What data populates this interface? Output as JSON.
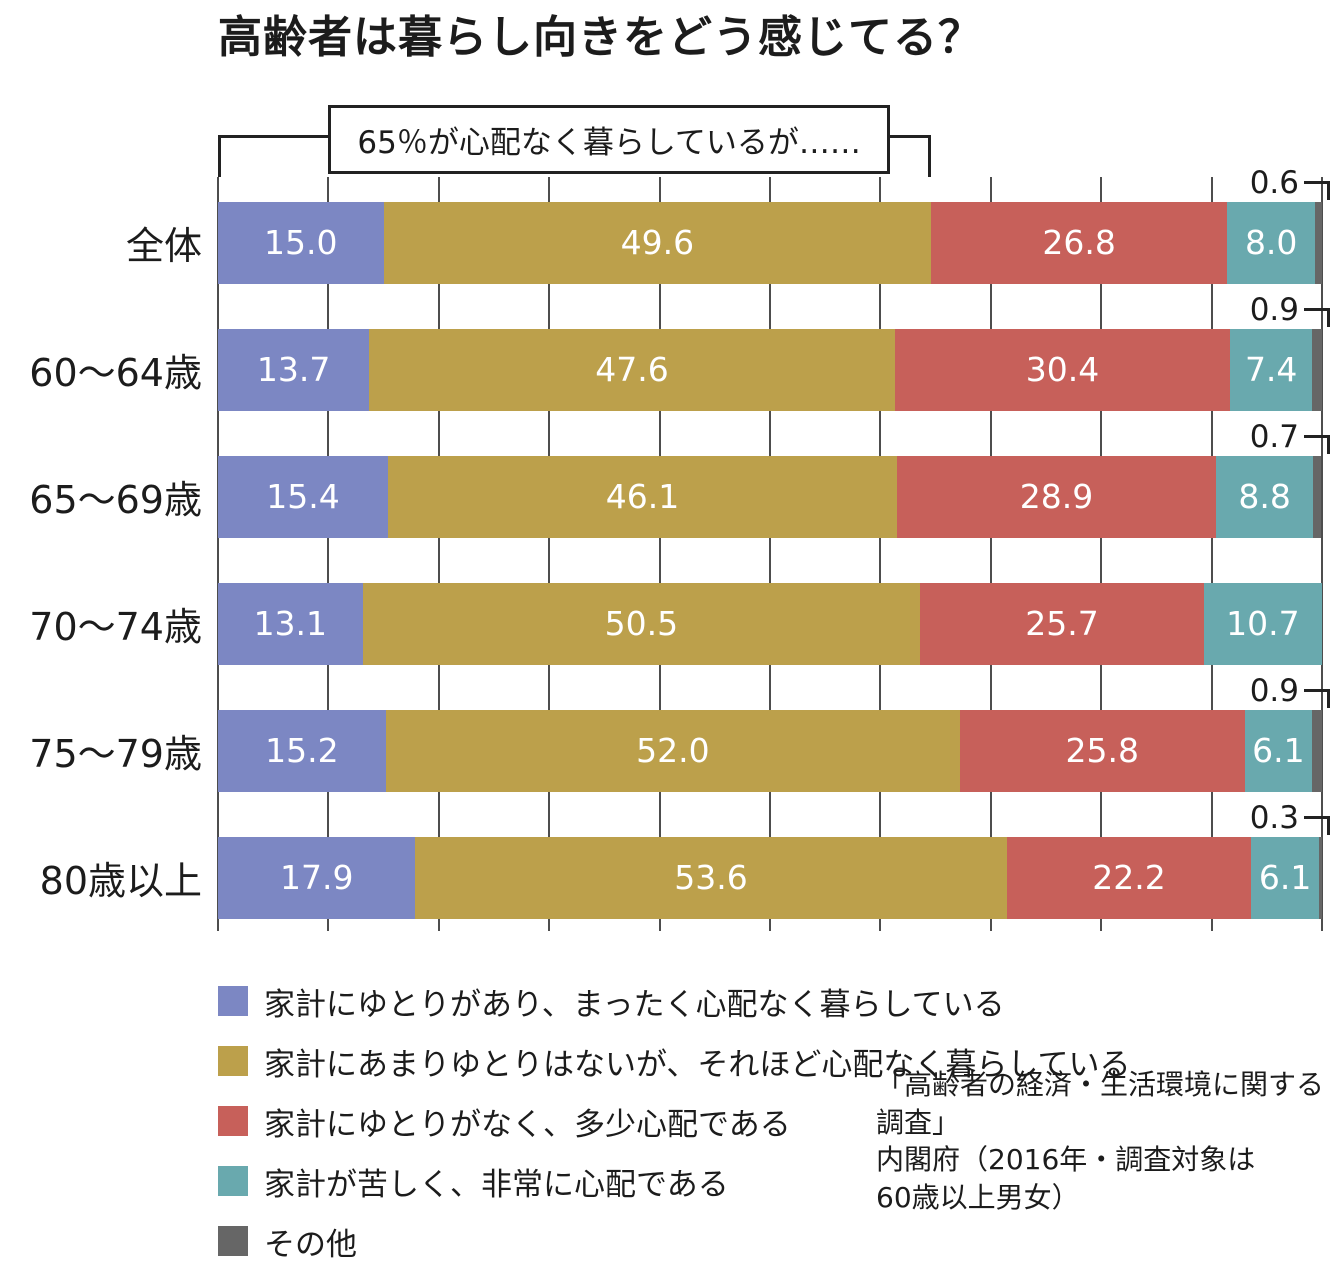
{
  "chart_data": {
    "type": "bar",
    "orientation": "horizontal",
    "stacked": true,
    "grid": true,
    "legend_position": "bottom-left",
    "value_suffix": "%",
    "xlim": [
      0,
      100
    ],
    "title": "高齢者は暮らし向きをどう感じてる？",
    "annotation": "65％が心配なく暮らしているが……",
    "categories": [
      "全体",
      "60〜64歳",
      "65〜69歳",
      "70〜74歳",
      "75〜79歳",
      "80歳以上"
    ],
    "series": [
      {
        "name": "家計にゆとりがあり、まったく心配なく暮らしている",
        "color": "#7c87c3",
        "values": [
          15.0,
          13.7,
          15.4,
          13.1,
          15.2,
          17.9
        ]
      },
      {
        "name": "家計にあまりゆとりはないが、それほど心配なく暮らしている",
        "color": "#bca04b",
        "values": [
          49.6,
          47.6,
          46.1,
          50.5,
          52.0,
          53.6
        ]
      },
      {
        "name": "家計にゆとりがなく、多少心配である",
        "color": "#c7605a",
        "values": [
          26.8,
          30.4,
          28.9,
          25.7,
          25.8,
          22.2
        ]
      },
      {
        "name": "家計が苦しく、非常に心配である",
        "color": "#69a9ae",
        "values": [
          8.0,
          7.4,
          8.8,
          10.7,
          6.1,
          6.1
        ]
      },
      {
        "name": "その他",
        "color": "#666666",
        "values": [
          0.6,
          0.9,
          0.7,
          0.0,
          0.9,
          0.3
        ]
      }
    ],
    "other_value_labels": [
      "0.6",
      "0.9",
      "0.7",
      "",
      "0.9",
      "0.3"
    ]
  },
  "source_lines": [
    "「高齢者の経済・生活環境に関する調査」",
    "内閣府（2016年・調査対象は",
    "60歳以上男女）"
  ]
}
